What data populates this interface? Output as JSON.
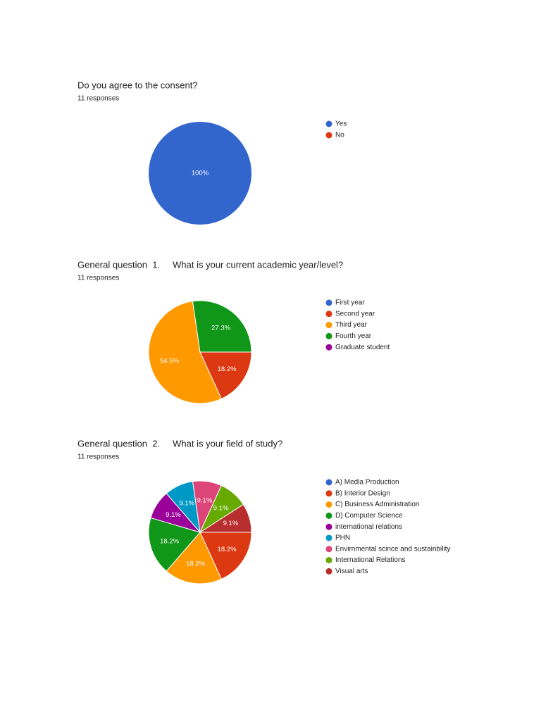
{
  "chart_data": [
    {
      "type": "pie",
      "title": "Do you agree to the consent?",
      "subtitle": "11 responses",
      "categories": [
        "Yes",
        "No"
      ],
      "values": [
        100,
        0
      ],
      "value_labels": [
        "100%",
        null
      ],
      "colors": [
        "#3366cc",
        "#dc3912"
      ]
    },
    {
      "type": "pie",
      "title": "General question  1.     What is your current academic year/level?",
      "subtitle": "11 responses",
      "categories": [
        "First year",
        "Second year",
        "Third year",
        "Fourth year",
        "Graduate student"
      ],
      "values": [
        0,
        18.2,
        54.5,
        27.3,
        0
      ],
      "value_labels": [
        null,
        "18.2%",
        "54.5%",
        "27.3%",
        null
      ],
      "colors": [
        "#3366cc",
        "#dc3912",
        "#ff9900",
        "#109618",
        "#990099"
      ]
    },
    {
      "type": "pie",
      "title": "General question  2.     What is your field of study?",
      "subtitle": "11 responses",
      "categories": [
        "A) Media Production",
        "B) Interior Design",
        "C) Business Administration",
        "D) Computer Science",
        "international relations",
        "PHN",
        "Envirnmental scince and sustainbility",
        "International Relations",
        "Visual arts"
      ],
      "values": [
        0,
        18.2,
        18.2,
        18.2,
        9.1,
        9.1,
        9.1,
        9.1,
        9.1
      ],
      "value_labels": [
        null,
        "18.2%",
        "18.2%",
        "18.2%",
        "9.1%",
        "9.1%",
        "9.1%",
        "9.1%",
        "9.1%"
      ],
      "colors": [
        "#3366cc",
        "#dc3912",
        "#ff9900",
        "#109618",
        "#990099",
        "#0099c6",
        "#dd4477",
        "#66aa00",
        "#b82e2e"
      ]
    }
  ]
}
